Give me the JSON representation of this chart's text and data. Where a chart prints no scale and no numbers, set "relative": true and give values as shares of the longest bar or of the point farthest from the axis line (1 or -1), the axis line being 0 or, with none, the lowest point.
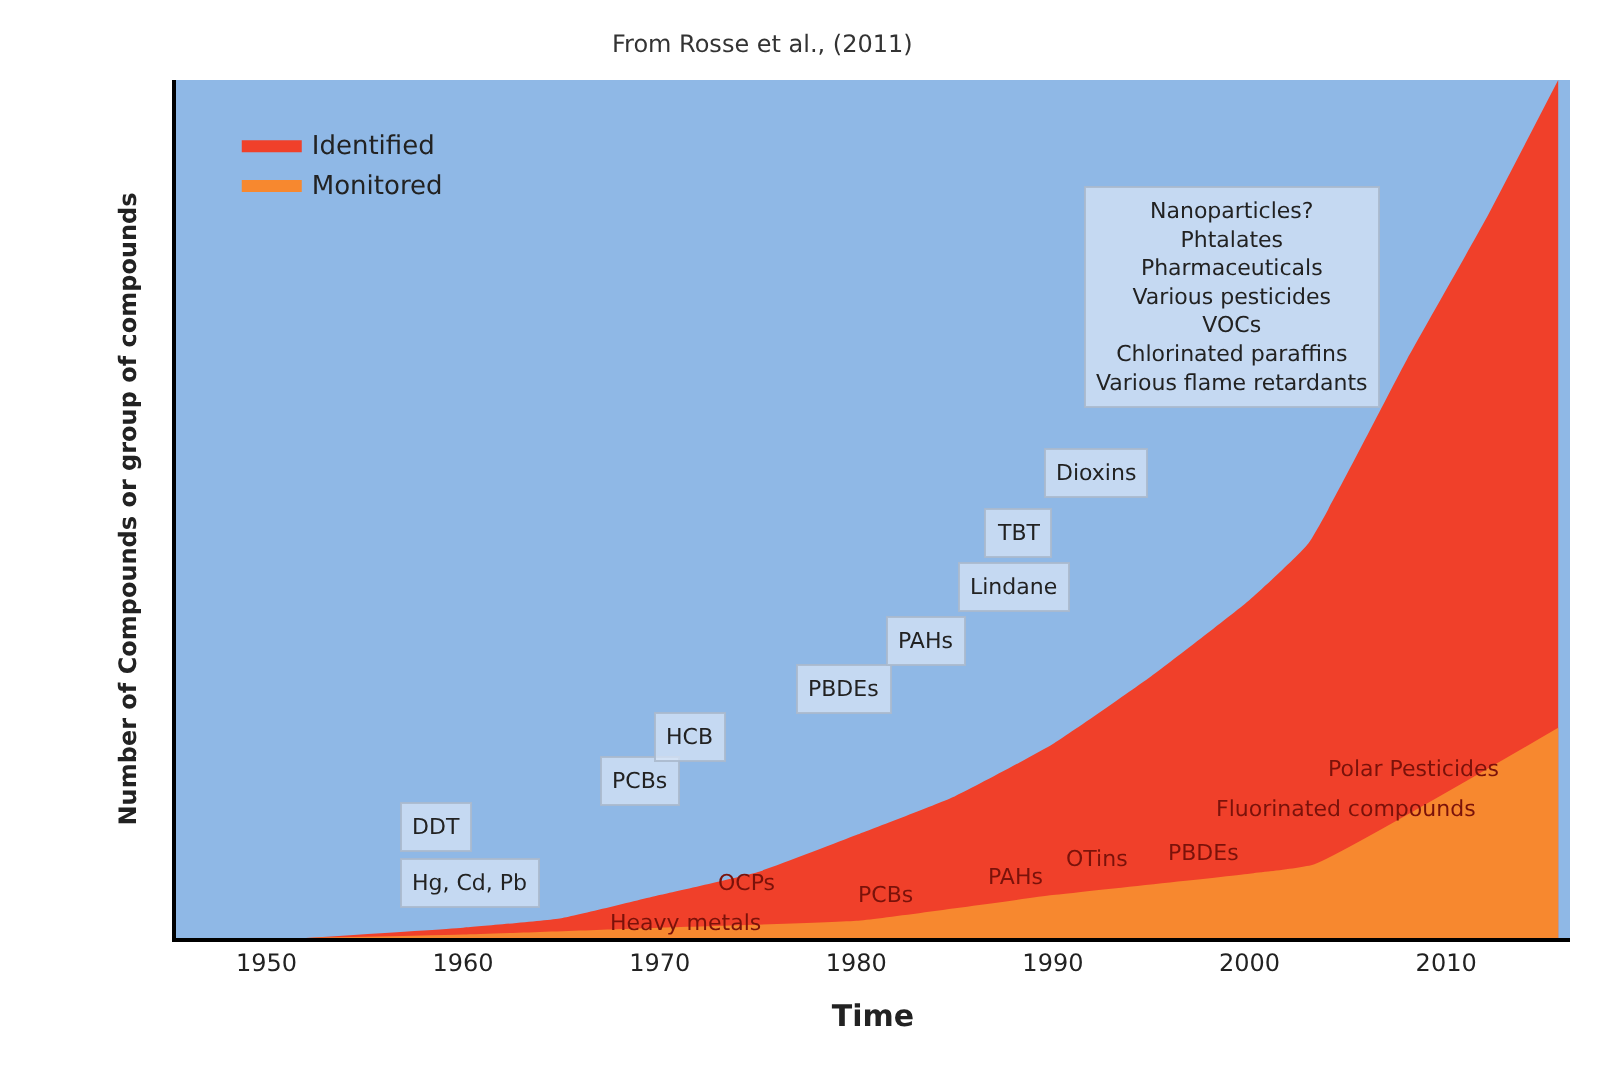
{
  "chart_data": {
    "type": "area",
    "relative": true,
    "xlabel": "Time",
    "ylabel": "Number of Compounds or group of compounds",
    "x": [
      1952,
      1960,
      1965,
      1970,
      1975,
      1980,
      1985,
      1990,
      1995,
      2000,
      2003,
      2008,
      2012,
      2015.7
    ],
    "series": [
      {
        "name": "Identified",
        "color": "#f0402a",
        "values": [
          0,
          0.012,
          0.023,
          0.05,
          0.077,
          0.12,
          0.165,
          0.226,
          0.305,
          0.394,
          0.46,
          0.674,
          0.837,
          1.0
        ]
      },
      {
        "name": "Monitored",
        "color": "#f7882f",
        "x": [
          1952,
          1960,
          1970,
          1980,
          1990,
          2000,
          2003.3,
          2015.7
        ],
        "values": [
          0,
          0.004,
          0.012,
          0.02,
          0.05,
          0.075,
          0.086,
          0.245
        ]
      }
    ],
    "xlim": [
      1945.4,
      2016.3
    ],
    "xticks": [
      1950,
      1960,
      1970,
      1980,
      1990,
      2000,
      2010
    ],
    "legend": "top left",
    "grid": false,
    "annotations": [
      "From Rosse et al., (2011)",
      "Hg, Cd, Pb",
      "DDT",
      "PCBs",
      "HCB",
      "PBDEs",
      "PAHs",
      "Lindane",
      "TBT",
      "Dioxins",
      "Nanoparticles?\nPhtalates\nPharmaceuticals\nVarious pesticides\nVOCs\nChlorinated paraffins\nVarious flame retardants",
      "Heavy metals",
      "OCPs",
      "PCBs",
      "PAHs",
      "OTins",
      "PBDEs",
      "Fluorinated compounds",
      "Polar Pesticides"
    ]
  }
}
